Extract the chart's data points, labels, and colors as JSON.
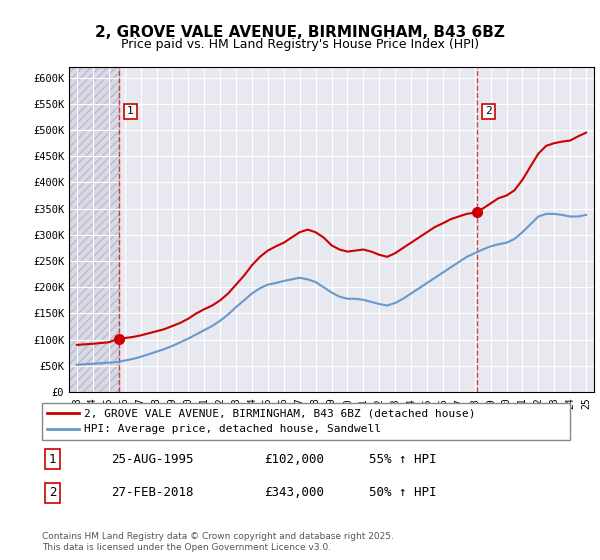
{
  "title": "2, GROVE VALE AVENUE, BIRMINGHAM, B43 6BZ",
  "subtitle": "Price paid vs. HM Land Registry's House Price Index (HPI)",
  "background_color": "#ffffff",
  "plot_bg_color": "#e8e8f0",
  "grid_color": "#ffffff",
  "hatch_color": "#ccccdd",
  "ylabel_color": "#222222",
  "red_line_color": "#cc0000",
  "blue_line_color": "#6699cc",
  "red_dot_color": "#cc0000",
  "ylim": [
    0,
    620000
  ],
  "yticks": [
    0,
    50000,
    100000,
    150000,
    200000,
    250000,
    300000,
    350000,
    400000,
    450000,
    500000,
    550000,
    600000
  ],
  "ytick_labels": [
    "£0",
    "£50K",
    "£100K",
    "£150K",
    "£200K",
    "£250K",
    "£300K",
    "£350K",
    "£400K",
    "£450K",
    "£500K",
    "£550K",
    "£600K"
  ],
  "xlim_start": 1992.5,
  "xlim_end": 2025.5,
  "xticks": [
    1993,
    1994,
    1995,
    1996,
    1997,
    1998,
    1999,
    2000,
    2001,
    2002,
    2003,
    2004,
    2005,
    2006,
    2007,
    2008,
    2009,
    2010,
    2011,
    2012,
    2013,
    2014,
    2015,
    2016,
    2017,
    2018,
    2019,
    2020,
    2021,
    2022,
    2023,
    2024,
    2025
  ],
  "sale1_x": 1995.65,
  "sale1_y": 102000,
  "sale1_label": "1",
  "sale2_x": 2018.16,
  "sale2_y": 343000,
  "sale2_label": "2",
  "legend_line1": "2, GROVE VALE AVENUE, BIRMINGHAM, B43 6BZ (detached house)",
  "legend_line2": "HPI: Average price, detached house, Sandwell",
  "table_row1": [
    "1",
    "25-AUG-1995",
    "£102,000",
    "55% ↑ HPI"
  ],
  "table_row2": [
    "2",
    "27-FEB-2018",
    "£343,000",
    "50% ↑ HPI"
  ],
  "footer": "Contains HM Land Registry data © Crown copyright and database right 2025.\nThis data is licensed under the Open Government Licence v3.0.",
  "red_line_x": [
    1993.0,
    1993.5,
    1994.0,
    1994.5,
    1995.0,
    1995.65,
    1996.0,
    1996.5,
    1997.0,
    1997.5,
    1998.0,
    1998.5,
    1999.0,
    1999.5,
    2000.0,
    2000.5,
    2001.0,
    2001.5,
    2002.0,
    2002.5,
    2003.0,
    2003.5,
    2004.0,
    2004.5,
    2005.0,
    2005.5,
    2006.0,
    2006.5,
    2007.0,
    2007.5,
    2008.0,
    2008.5,
    2009.0,
    2009.5,
    2010.0,
    2010.5,
    2011.0,
    2011.5,
    2012.0,
    2012.5,
    2013.0,
    2013.5,
    2014.0,
    2014.5,
    2015.0,
    2015.5,
    2016.0,
    2016.5,
    2017.0,
    2017.5,
    2018.16,
    2018.5,
    2019.0,
    2019.5,
    2020.0,
    2020.5,
    2021.0,
    2021.5,
    2022.0,
    2022.5,
    2023.0,
    2023.5,
    2024.0,
    2024.5,
    2025.0
  ],
  "red_line_y": [
    90000,
    91000,
    92000,
    93500,
    95000,
    102000,
    103000,
    105000,
    108000,
    112000,
    116000,
    120000,
    126000,
    132000,
    140000,
    150000,
    158000,
    165000,
    175000,
    188000,
    205000,
    222000,
    242000,
    258000,
    270000,
    278000,
    285000,
    295000,
    305000,
    310000,
    305000,
    295000,
    280000,
    272000,
    268000,
    270000,
    272000,
    268000,
    262000,
    258000,
    265000,
    275000,
    285000,
    295000,
    305000,
    315000,
    322000,
    330000,
    335000,
    340000,
    343000,
    350000,
    360000,
    370000,
    375000,
    385000,
    405000,
    430000,
    455000,
    470000,
    475000,
    478000,
    480000,
    488000,
    495000
  ],
  "blue_line_x": [
    1993.0,
    1993.5,
    1994.0,
    1994.5,
    1995.0,
    1995.5,
    1996.0,
    1996.5,
    1997.0,
    1997.5,
    1998.0,
    1998.5,
    1999.0,
    1999.5,
    2000.0,
    2000.5,
    2001.0,
    2001.5,
    2002.0,
    2002.5,
    2003.0,
    2003.5,
    2004.0,
    2004.5,
    2005.0,
    2005.5,
    2006.0,
    2006.5,
    2007.0,
    2007.5,
    2008.0,
    2008.5,
    2009.0,
    2009.5,
    2010.0,
    2010.5,
    2011.0,
    2011.5,
    2012.0,
    2012.5,
    2013.0,
    2013.5,
    2014.0,
    2014.5,
    2015.0,
    2015.5,
    2016.0,
    2016.5,
    2017.0,
    2017.5,
    2018.0,
    2018.5,
    2019.0,
    2019.5,
    2020.0,
    2020.5,
    2021.0,
    2021.5,
    2022.0,
    2022.5,
    2023.0,
    2023.5,
    2024.0,
    2024.5,
    2025.0
  ],
  "blue_line_y": [
    52000,
    53000,
    54000,
    55000,
    56000,
    57000,
    60000,
    63000,
    67000,
    72000,
    77000,
    82000,
    88000,
    95000,
    102000,
    110000,
    118000,
    126000,
    136000,
    148000,
    162000,
    175000,
    188000,
    198000,
    205000,
    208000,
    212000,
    215000,
    218000,
    215000,
    210000,
    200000,
    190000,
    182000,
    178000,
    178000,
    176000,
    172000,
    168000,
    165000,
    170000,
    178000,
    188000,
    198000,
    208000,
    218000,
    228000,
    238000,
    248000,
    258000,
    265000,
    272000,
    278000,
    282000,
    285000,
    292000,
    305000,
    320000,
    335000,
    340000,
    340000,
    338000,
    335000,
    335000,
    338000
  ]
}
